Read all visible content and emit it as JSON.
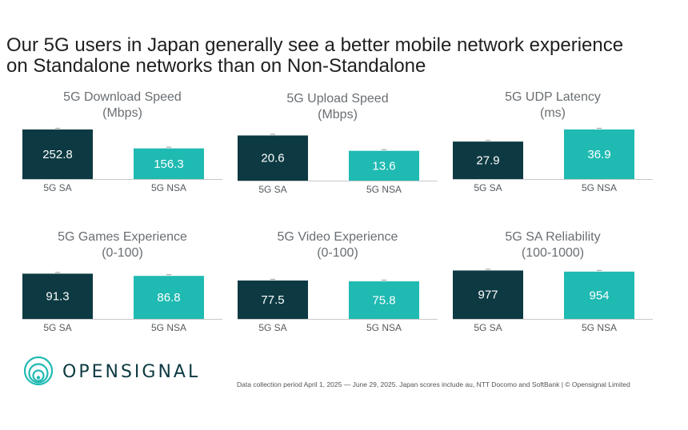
{
  "headline": {
    "line1": "Our 5G users in Japan generally see a better mobile network experience",
    "line2": "on Standalone networks than on Non-Standalone"
  },
  "colors": {
    "sa": "#0d3a42",
    "nsa": "#1fbab2",
    "axis": "#c8c8c8"
  },
  "chart_data": [
    {
      "type": "bar",
      "title": "5G Download Speed",
      "subtitle": "(Mbps)",
      "categories": [
        "5G SA",
        "5G NSA"
      ],
      "values": [
        252.8,
        156.3
      ],
      "labels": [
        "252.8",
        "156.3"
      ],
      "ylim": [
        0,
        252.8
      ]
    },
    {
      "type": "bar",
      "title": "5G Upload Speed",
      "subtitle": "(Mbps)",
      "categories": [
        "5G SA",
        "5G NSA"
      ],
      "values": [
        20.6,
        13.6
      ],
      "labels": [
        "20.6",
        "13.6"
      ],
      "ylim": [
        0,
        22.6
      ]
    },
    {
      "type": "bar",
      "title": "5G UDP Latency",
      "subtitle": "(ms)",
      "categories": [
        "5G SA",
        "5G NSA"
      ],
      "values": [
        27.9,
        36.9
      ],
      "labels": [
        "27.9",
        "36.9"
      ],
      "ylim": [
        0,
        36.9
      ]
    },
    {
      "type": "bar",
      "title": "5G Games Experience",
      "subtitle": "(0-100)",
      "categories": [
        "5G SA",
        "5G NSA"
      ],
      "values": [
        91.3,
        86.8
      ],
      "labels": [
        "91.3",
        "86.8"
      ],
      "ylim": [
        0,
        100
      ]
    },
    {
      "type": "bar",
      "title": "5G Video Experience",
      "subtitle": "(0-100)",
      "categories": [
        "5G SA",
        "5G NSA"
      ],
      "values": [
        77.5,
        75.8
      ],
      "labels": [
        "77.5",
        "75.8"
      ],
      "ylim": [
        0,
        100
      ]
    },
    {
      "type": "bar",
      "title": "5G SA Reliability",
      "subtitle": "(100-1000)",
      "categories": [
        "5G SA",
        "5G NSA"
      ],
      "values": [
        977,
        954
      ],
      "labels": [
        "977",
        "954"
      ],
      "ylim": [
        0,
        1000
      ]
    }
  ],
  "logo": {
    "wordmark": "OPENSIGNAL",
    "icon": "opensignal-rings-icon"
  },
  "footnote": "Data collection period April 1, 2025 — June 29, 2025. Japan scores include au, NTT Docomo and SoftBank | © Opensignal Limited"
}
